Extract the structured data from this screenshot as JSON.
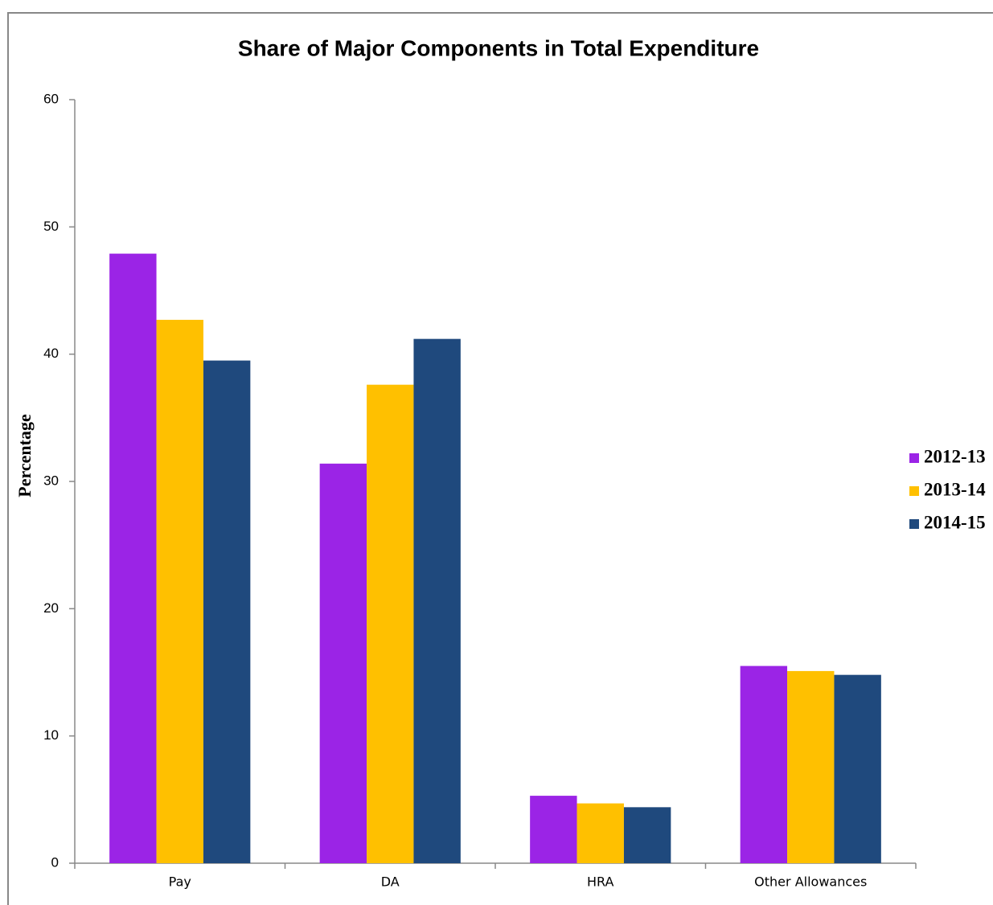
{
  "chart_data": {
    "type": "bar",
    "title": "Share of Major Components in Total Expenditure",
    "y_label": "Percentage",
    "categories": [
      "Pay",
      "DA",
      "HRA",
      "Other Allowances"
    ],
    "series": [
      {
        "name": "2012-13",
        "color": "#9b24e6",
        "values": [
          47.9,
          31.4,
          5.3,
          15.5
        ]
      },
      {
        "name": "2013-14",
        "color": "#ffc000",
        "values": [
          42.7,
          37.6,
          4.7,
          15.1
        ]
      },
      {
        "name": "2014-15",
        "color": "#1f497d",
        "values": [
          39.5,
          41.2,
          4.4,
          14.8
        ]
      }
    ],
    "ylim": [
      0,
      60
    ],
    "yticks": [
      0,
      10,
      20,
      30,
      40,
      50,
      60
    ],
    "grid": false,
    "legend": "right"
  }
}
